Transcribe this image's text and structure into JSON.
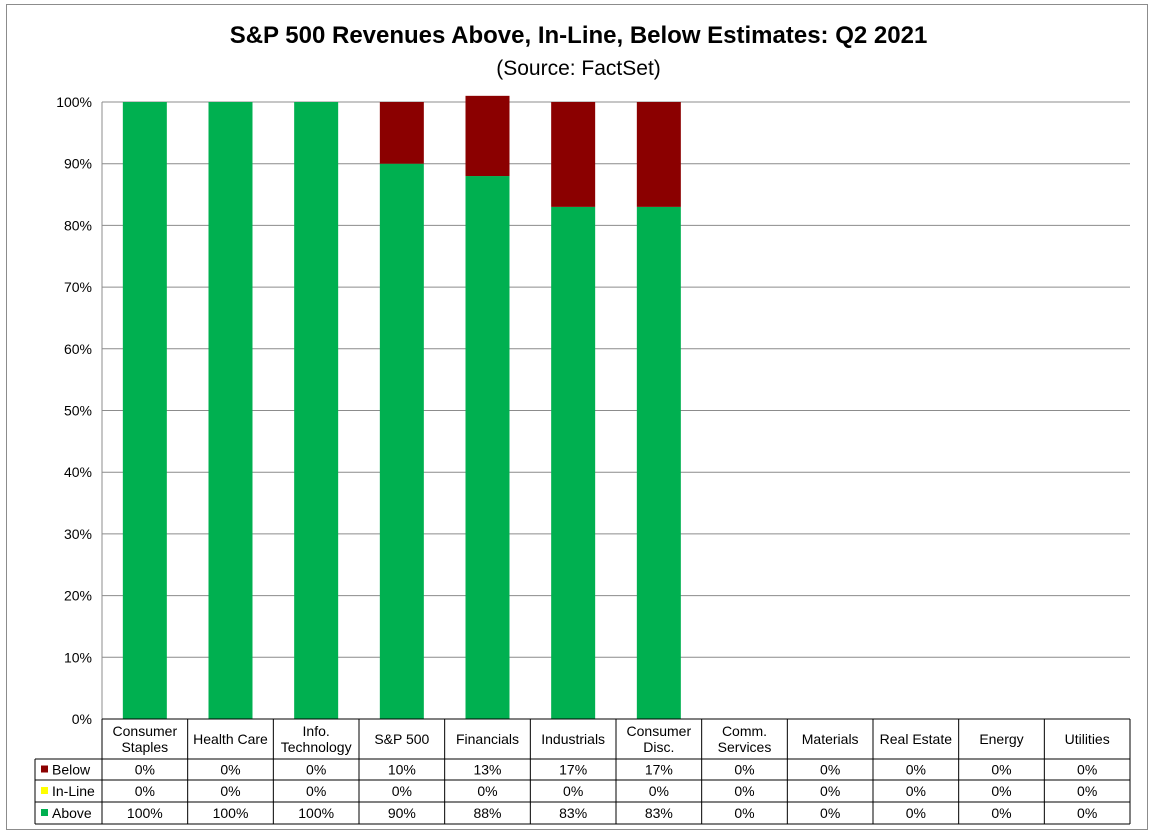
{
  "chart_data": {
    "type": "bar",
    "stacked": true,
    "title": "S&P 500 Revenues Above, In-Line, Below Estimates: Q2 2021",
    "subtitle": "(Source: FactSet)",
    "categories": [
      "Consumer Staples",
      "Health Care",
      "Info. Technology",
      "S&P 500",
      "Financials",
      "Industrials",
      "Consumer Disc.",
      "Comm. Services",
      "Materials",
      "Real Estate",
      "Energy",
      "Utilities"
    ],
    "category_lines": [
      [
        "Consumer",
        "Staples"
      ],
      [
        "Health Care"
      ],
      [
        "Info.",
        "Technology"
      ],
      [
        "S&P 500"
      ],
      [
        "Financials"
      ],
      [
        "Industrials"
      ],
      [
        "Consumer",
        "Disc."
      ],
      [
        "Comm.",
        "Services"
      ],
      [
        "Materials"
      ],
      [
        "Real Estate"
      ],
      [
        "Energy"
      ],
      [
        "Utilities"
      ]
    ],
    "series": [
      {
        "name": "Below",
        "color": "#8b0000",
        "values": [
          0,
          0,
          0,
          10,
          13,
          17,
          17,
          0,
          0,
          0,
          0,
          0
        ],
        "labels": [
          "0%",
          "0%",
          "0%",
          "10%",
          "13%",
          "17%",
          "17%",
          "0%",
          "0%",
          "0%",
          "0%",
          "0%"
        ]
      },
      {
        "name": "In-Line",
        "color": "#ffff00",
        "values": [
          0,
          0,
          0,
          0,
          0,
          0,
          0,
          0,
          0,
          0,
          0,
          0
        ],
        "labels": [
          "0%",
          "0%",
          "0%",
          "0%",
          "0%",
          "0%",
          "0%",
          "0%",
          "0%",
          "0%",
          "0%",
          "0%"
        ]
      },
      {
        "name": "Above",
        "color": "#00b050",
        "values": [
          100,
          100,
          100,
          90,
          88,
          83,
          83,
          0,
          0,
          0,
          0,
          0
        ],
        "labels": [
          "100%",
          "100%",
          "100%",
          "90%",
          "88%",
          "83%",
          "83%",
          "0%",
          "0%",
          "0%",
          "0%",
          "0%"
        ]
      }
    ],
    "ylim": [
      0,
      100
    ],
    "yticks": [
      "0%",
      "10%",
      "20%",
      "30%",
      "40%",
      "50%",
      "60%",
      "70%",
      "80%",
      "90%",
      "100%"
    ],
    "grid": true,
    "legend": "data-table"
  }
}
